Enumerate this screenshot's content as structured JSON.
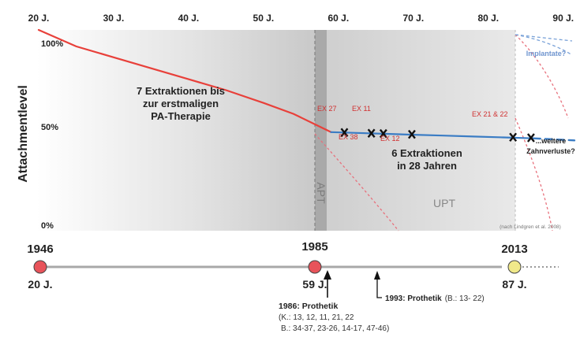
{
  "chart_data": {
    "type": "line",
    "ylabel": "Attachmentlevel",
    "x_ticks": [
      "20 J.",
      "30 J.",
      "40 J.",
      "50 J.",
      "60 J.",
      "70 J.",
      "80 J.",
      "90 J."
    ],
    "x_tick_values": [
      20,
      30,
      40,
      50,
      60,
      70,
      80,
      90
    ],
    "xlim": [
      20,
      91.5
    ],
    "y_ticks": [
      "100%",
      "50%",
      "0%"
    ],
    "y_tick_values": [
      100,
      50,
      0
    ],
    "ylim": [
      0,
      110
    ],
    "grid": false,
    "series": [
      {
        "color": "#e8403a",
        "x": [
          20,
          25,
          30,
          35,
          40,
          45,
          50,
          54,
          57,
          59
        ],
        "y": [
          110,
          101,
          95,
          89,
          83,
          77,
          70,
          64,
          58,
          54
        ]
      },
      {
        "color": "#3a7cc4",
        "x": [
          59,
          62,
          66,
          70,
          74,
          78,
          82,
          86
        ],
        "y": [
          54,
          53.6,
          53.1,
          52.6,
          52.1,
          51.6,
          51.1,
          50.6
        ]
      },
      {
        "color": "#3a7cc4",
        "dashed": true,
        "x": [
          86,
          88,
          91.5
        ],
        "y": [
          50.6,
          50.2,
          49.5
        ]
      }
    ],
    "extraction_marks": [
      {
        "x": 60.8,
        "y": 53.8
      },
      {
        "x": 64.4,
        "y": 53.4
      },
      {
        "x": 66.0,
        "y": 53.2
      },
      {
        "x": 69.8,
        "y": 52.8
      },
      {
        "x": 83.3,
        "y": 51.2
      },
      {
        "x": 85.7,
        "y": 50.9
      }
    ],
    "regions": [
      {
        "label": "APT",
        "from": 59,
        "to": 60.6
      },
      {
        "label": "UPT",
        "from": 60.6,
        "to": 86.5
      }
    ],
    "annotations": {
      "extraction_labels": [
        "EX 27",
        "EX 38",
        "EX 11",
        "EX 12",
        "EX 21 & 22"
      ],
      "left_note": [
        "7 Extraktionen bis",
        "zur erstmaligen",
        "PA-Therapie"
      ],
      "mid_note": [
        "6 Extraktionen",
        "in 28 Jahren"
      ],
      "right_note": [
        "...weitere",
        "Zahnverluste?"
      ],
      "implant_note": "Implantate?",
      "source": "(nach Lindgren et al. 2008)"
    }
  },
  "timeline": {
    "markers": [
      {
        "year": "1946",
        "age": "20 J.",
        "color": "#e8535a"
      },
      {
        "year": "1985",
        "age": "59 J.",
        "color": "#e8535a"
      },
      {
        "year": "2013",
        "age": "87 J.",
        "color": "#f0e98a"
      }
    ],
    "note_1986": {
      "title": "1986: Prothetik",
      "line1": "(K.: 13, 12, 11, 21, 22",
      "line2": "B.: 34-37, 23-26, 14-17, 47-46)"
    },
    "note_1993": {
      "title": "1993: Prothetik",
      "detail": "(B.: 13- 22)"
    }
  }
}
